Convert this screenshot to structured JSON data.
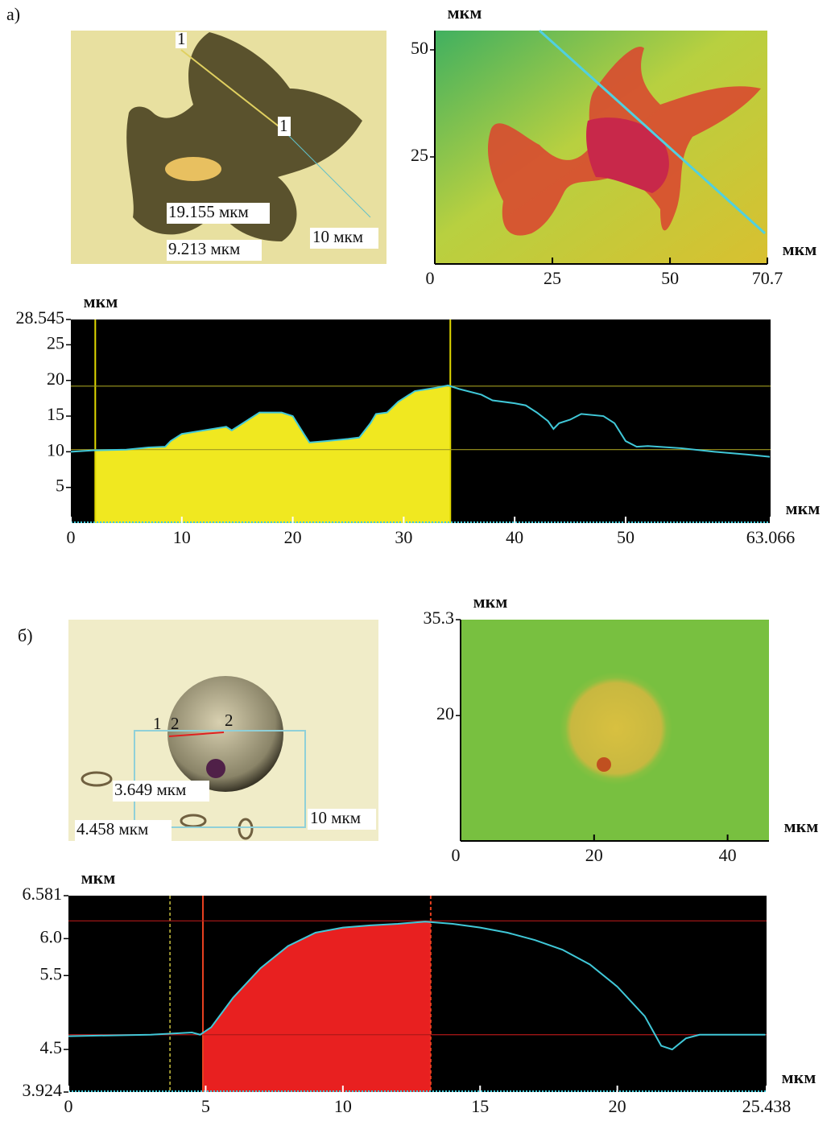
{
  "panels": [
    "а)",
    "б)"
  ],
  "micrographs": [
    {
      "labels": [
        "1",
        "1",
        "19.155 мкм",
        "9.213 мкм",
        "10 мкм"
      ]
    },
    {
      "labels": [
        "1",
        "2",
        "2",
        "3.649 мкм",
        "4.458 мкм",
        "10 мкм"
      ]
    }
  ],
  "chart_data": [
    {
      "type": "height_map",
      "x_label": "мкм",
      "y_label": "мкм",
      "xlim": [
        0,
        70.7
      ],
      "xticks": [
        0,
        25,
        50,
        70.7
      ],
      "ylim": [
        0,
        54.5
      ],
      "yticks": [
        25,
        50
      ]
    },
    {
      "type": "profile",
      "x_label": "мкм",
      "y_label": "мкм",
      "xlim": [
        0,
        63.066
      ],
      "xticks": [
        0,
        10,
        20,
        30,
        40,
        50,
        63.066
      ],
      "ylim": [
        0,
        28.545
      ],
      "yticks": [
        5,
        10,
        15,
        20,
        25,
        28.545
      ],
      "x": [
        0,
        2,
        5,
        7,
        8.5,
        9,
        10,
        12,
        14,
        14.5,
        15,
        16,
        17,
        19,
        20,
        21,
        21.5,
        23,
        25,
        26,
        27,
        27.5,
        28.5,
        29.5,
        31,
        33,
        34,
        35,
        37,
        38,
        40,
        41,
        42,
        43,
        43.5,
        44,
        45,
        46,
        48,
        49,
        50,
        51,
        52,
        55,
        58,
        61,
        63
      ],
      "values": [
        10.0,
        10.2,
        10.3,
        10.6,
        10.7,
        11.5,
        12.5,
        13.0,
        13.5,
        13.0,
        13.5,
        14.5,
        15.5,
        15.5,
        15.0,
        12.5,
        11.3,
        11.5,
        11.8,
        12.0,
        14.0,
        15.3,
        15.5,
        17.0,
        18.5,
        19.0,
        19.3,
        18.8,
        18.0,
        17.2,
        16.8,
        16.5,
        15.5,
        14.3,
        13.2,
        14.0,
        14.5,
        15.3,
        15.0,
        14.0,
        11.5,
        10.7,
        10.8,
        10.5,
        10.0,
        9.6,
        9.3
      ],
      "line_color": "#40c8d8",
      "highlight": {
        "xlim": [
          2.2,
          34.2
        ],
        "color": "#f0e820",
        "edge_color": "#e0d800"
      },
      "cursors": [],
      "hlines": [
        {
          "y": 19.2,
          "color": "#a09a20"
        },
        {
          "y": 10.3,
          "color": "#a09a20"
        }
      ]
    },
    {
      "type": "height_map",
      "x_label": "мкм",
      "y_label": "мкм",
      "xlim": [
        0,
        46.2
      ],
      "xticks": [
        0,
        20,
        40
      ],
      "ylim": [
        0,
        35.3
      ],
      "yticks": [
        20,
        35.3
      ]
    },
    {
      "type": "profile",
      "x_label": "мкм",
      "y_label": "мкм",
      "xlim": [
        0,
        25.438
      ],
      "xticks": [
        0,
        5,
        10,
        15,
        20,
        25.438
      ],
      "ylim": [
        3.924,
        6.581
      ],
      "yticks": [
        3.924,
        4.5,
        5.5,
        {
          "value": 6,
          "label": "6.0"
        },
        6.581
      ],
      "x": [
        0,
        3,
        4.5,
        4.8,
        5.2,
        6,
        7,
        8,
        9,
        10,
        11,
        12,
        13,
        14,
        15,
        16,
        17,
        18,
        19,
        20,
        21,
        21.6,
        22,
        22.5,
        23,
        25.4
      ],
      "values": [
        4.68,
        4.7,
        4.73,
        4.7,
        4.8,
        5.2,
        5.6,
        5.9,
        6.08,
        6.15,
        6.18,
        6.2,
        6.23,
        6.2,
        6.15,
        6.08,
        5.98,
        5.85,
        5.65,
        5.35,
        4.95,
        4.55,
        4.5,
        4.65,
        4.7,
        4.7
      ],
      "line_color": "#40c8d8",
      "highlight": {
        "xlim": [
          4.9,
          13.2
        ],
        "color": "#e82020",
        "edge_color": "#e84020"
      },
      "cursors": [
        {
          "x": 3.7,
          "color": "#c8c040",
          "dashed": true
        }
      ],
      "hlines": [
        {
          "y": 6.24,
          "color": "#b01818"
        },
        {
          "y": 4.7,
          "color": "#b01818"
        }
      ]
    }
  ]
}
